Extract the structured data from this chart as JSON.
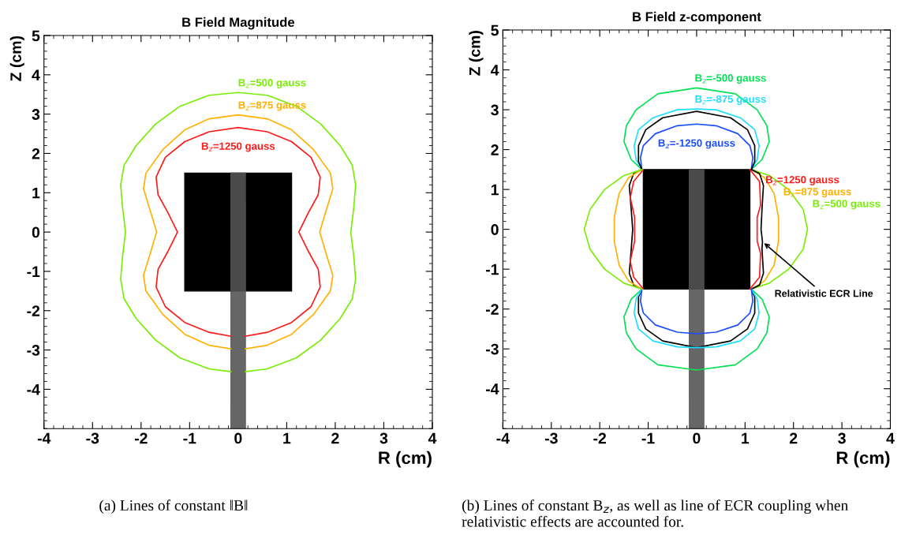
{
  "chart_data": [
    {
      "type": "line",
      "title": "B Field Magnitude",
      "xlabel": "R (cm)",
      "ylabel": "Z (cm)",
      "xlim": [
        -4,
        4
      ],
      "ylim": [
        -5,
        5
      ],
      "xticks": [
        -4,
        -3,
        -2,
        -1,
        0,
        1,
        2,
        3,
        4
      ],
      "yticks": [
        -4,
        -3,
        -2,
        -1,
        0,
        1,
        2,
        3,
        4,
        5
      ],
      "series": [
        {
          "name": "B$_{z}$=500 gauss",
          "color": "#77ee00",
          "x": [
            0.15,
            0.6,
            1.2,
            1.7,
            2.1,
            2.35,
            2.42,
            2.38,
            2.32,
            2.38,
            2.42,
            2.35,
            2.1,
            1.7,
            1.2,
            0.6,
            0,
            -0.6,
            -1.2,
            -1.7,
            -2.1,
            -2.35,
            -2.42,
            -2.38,
            -2.32,
            -2.38,
            -2.42,
            -2.35,
            -2.1,
            -1.7,
            -1.2,
            -0.6,
            -0.15
          ],
          "values": [
            -3.55,
            -3.48,
            -3.2,
            -2.75,
            -2.2,
            -1.7,
            -1.2,
            -0.6,
            0,
            0.6,
            1.2,
            1.7,
            2.2,
            2.75,
            3.2,
            3.48,
            3.55,
            3.48,
            3.2,
            2.75,
            2.2,
            1.7,
            1.2,
            0.6,
            0,
            -0.6,
            -1.2,
            -1.7,
            -2.2,
            -2.75,
            -3.2,
            -3.48,
            -3.55
          ]
        },
        {
          "name": "B$_{z}$=875 gauss",
          "color": "#ffb000",
          "x": [
            0.15,
            0.6,
            1.1,
            1.55,
            1.9,
            1.95,
            1.8,
            1.68,
            1.8,
            1.95,
            1.9,
            1.55,
            1.1,
            0.6,
            0,
            -0.6,
            -1.1,
            -1.55,
            -1.9,
            -1.95,
            -1.8,
            -1.68,
            -1.8,
            -1.95,
            -1.9,
            -1.55,
            -1.1,
            -0.6,
            -0.15
          ],
          "values": [
            -2.97,
            -2.88,
            -2.6,
            -2.1,
            -1.5,
            -1.1,
            -0.5,
            0,
            0.5,
            1.1,
            1.5,
            2.1,
            2.6,
            2.88,
            2.98,
            2.88,
            2.6,
            2.1,
            1.5,
            1.1,
            0.5,
            0,
            -0.5,
            -1.1,
            -1.5,
            -2.1,
            -2.6,
            -2.88,
            -2.97
          ]
        },
        {
          "name": "B$_{z}$=1250 gauss",
          "color": "#ff1a1a",
          "x": [
            0.15,
            0.6,
            1.1,
            1.5,
            1.69,
            1.65,
            1.45,
            1.25,
            1.45,
            1.65,
            1.69,
            1.5,
            1.1,
            0.6,
            0,
            -0.6,
            -1.1,
            -1.5,
            -1.69,
            -1.65,
            -1.45,
            -1.25,
            -1.45,
            -1.65,
            -1.69,
            -1.5,
            -1.1,
            -0.6,
            -0.15
          ],
          "values": [
            -2.65,
            -2.55,
            -2.3,
            -1.9,
            -1.4,
            -0.95,
            -0.5,
            0,
            0.5,
            0.95,
            1.4,
            1.9,
            2.3,
            2.55,
            2.66,
            2.55,
            2.3,
            1.9,
            1.4,
            0.95,
            0.5,
            0,
            -0.5,
            -0.95,
            -1.4,
            -1.9,
            -2.3,
            -2.55,
            -2.65
          ]
        }
      ],
      "annotations": [
        "(a) Lines of constant ‖B‖"
      ]
    },
    {
      "type": "line",
      "title": "B Field z-component",
      "xlabel": "R (cm)",
      "ylabel": "Z (cm)",
      "xlim": [
        -4,
        4
      ],
      "ylim": [
        -5,
        5
      ],
      "xticks": [
        -4,
        -3,
        -2,
        -1,
        0,
        1,
        2,
        3,
        4
      ],
      "yticks": [
        -4,
        -3,
        -2,
        -1,
        0,
        1,
        2,
        3,
        4,
        5
      ],
      "series": [
        {
          "name": "B$_{z}$=-500 gauss",
          "color": "#00e055",
          "x": [
            -1.13,
            -1.35,
            -1.5,
            -1.45,
            -1.25,
            -0.8,
            0,
            0.8,
            1.25,
            1.45,
            1.5,
            1.35,
            1.13
          ],
          "values": [
            1.5,
            1.75,
            2.2,
            2.6,
            3.0,
            3.4,
            3.55,
            3.4,
            3.0,
            2.6,
            2.2,
            1.75,
            1.5
          ]
        },
        {
          "name": "B$_{z}$=-875 gauss",
          "color": "#22ddff",
          "x": [
            -1.13,
            -1.25,
            -1.29,
            -1.2,
            -0.9,
            -0.4,
            0,
            0.4,
            0.9,
            1.2,
            1.29,
            1.25,
            1.13
          ],
          "values": [
            1.5,
            1.75,
            2.1,
            2.5,
            2.8,
            3.0,
            3.02,
            3.0,
            2.8,
            2.5,
            2.1,
            1.75,
            1.5
          ]
        },
        {
          "name": "B$_{z}$=-1250 gauss",
          "color": "#1a4dff",
          "x": [
            -1.13,
            -1.16,
            -1.1,
            -0.85,
            -0.4,
            0,
            0.4,
            0.85,
            1.1,
            1.16,
            1.13
          ],
          "values": [
            1.5,
            1.8,
            2.1,
            2.4,
            2.6,
            2.64,
            2.6,
            2.4,
            2.1,
            1.8,
            1.5
          ]
        },
        {
          "name": "B$_{z}$=1250 gauss",
          "color": "#ff1a1a",
          "x": [
            1.1,
            1.3,
            1.32,
            1.25,
            1.25,
            1.32,
            1.3,
            1.1
          ],
          "values": [
            1.5,
            1.2,
            0.6,
            0.3,
            -0.3,
            -0.6,
            -1.2,
            -1.5
          ]
        },
        {
          "name": "B$_{z}$=875 gauss",
          "color": "#ffb000",
          "x": [
            1.13,
            1.4,
            1.6,
            1.69,
            1.69,
            1.6,
            1.4,
            1.13
          ],
          "values": [
            1.5,
            1.3,
            0.9,
            0.3,
            -0.3,
            -0.9,
            -1.3,
            -1.5
          ]
        },
        {
          "name": "B$_{z}$=500 gauss",
          "color": "#77ee00",
          "x": [
            1.13,
            1.5,
            1.9,
            2.2,
            2.29,
            2.2,
            1.9,
            1.5,
            1.13
          ],
          "values": [
            1.5,
            1.35,
            1.0,
            0.5,
            0,
            -0.5,
            -1.0,
            -1.35,
            -1.5
          ]
        },
        {
          "color": "#000000",
          "x": [
            -1.13,
            -1.2,
            -1.2,
            -1.05,
            -0.7,
            0,
            0.7,
            1.05,
            1.2,
            1.2,
            1.13
          ],
          "values": [
            1.5,
            1.7,
            2.1,
            2.5,
            2.8,
            2.96,
            2.8,
            2.5,
            2.1,
            1.7,
            1.5
          ]
        },
        {
          "color": "#000000",
          "x": [
            1.13,
            1.3,
            1.38,
            1.35,
            1.33,
            1.36,
            1.35,
            1.38,
            1.3,
            1.13
          ],
          "values": [
            1.5,
            1.4,
            1.1,
            0.5,
            0,
            -0.31,
            -0.5,
            -1.1,
            -1.4,
            -1.5
          ]
        },
        {
          "color": "#000000",
          "x": [
            -1.13,
            -1.3,
            -1.39,
            -1.35,
            -1.32,
            -1.35,
            -1.39,
            -1.3,
            -1.13
          ],
          "values": [
            1.5,
            1.4,
            1.1,
            0.5,
            0,
            -0.5,
            -1.1,
            -1.4,
            -1.5
          ]
        },
        {
          "color": "#000000",
          "x": [
            -1.13,
            -1.2,
            -1.2,
            -1.05,
            -0.7,
            0,
            0.7,
            1.05,
            1.2,
            1.2,
            1.13
          ],
          "values": [
            -1.5,
            -1.7,
            -2.1,
            -2.5,
            -2.8,
            -2.97,
            -2.8,
            -2.5,
            -2.1,
            -1.7,
            -1.5
          ]
        },
        {
          "color": "#00e055",
          "x": [
            -1.13,
            -1.35,
            -1.5,
            -1.45,
            -1.25,
            -0.8,
            0,
            0.8,
            1.25,
            1.45,
            1.5,
            1.35,
            1.13
          ],
          "values": [
            -1.5,
            -1.75,
            -2.2,
            -2.6,
            -3.0,
            -3.4,
            -3.53,
            -3.4,
            -3.0,
            -2.6,
            -2.2,
            -1.75,
            -1.5
          ]
        },
        {
          "color": "#22ddff",
          "x": [
            -1.13,
            -1.25,
            -1.29,
            -1.2,
            -0.9,
            -0.4,
            0,
            0.4,
            0.9,
            1.2,
            1.29,
            1.25,
            1.13
          ],
          "values": [
            -1.5,
            -1.75,
            -2.1,
            -2.5,
            -2.8,
            -2.95,
            -2.97,
            -2.95,
            -2.8,
            -2.5,
            -2.1,
            -1.75,
            -1.5
          ]
        },
        {
          "color": "#1a4dff",
          "x": [
            -1.13,
            -1.16,
            -1.1,
            -0.85,
            -0.4,
            0,
            0.4,
            0.85,
            1.1,
            1.16,
            1.13
          ],
          "values": [
            -1.5,
            -1.8,
            -2.1,
            -2.4,
            -2.58,
            -2.62,
            -2.58,
            -2.4,
            -2.1,
            -1.8,
            -1.5
          ]
        },
        {
          "color": "#ff1a1a",
          "x": [
            -1.1,
            -1.3,
            -1.37,
            -1.28,
            -1.28,
            -1.37,
            -1.3,
            -1.1
          ],
          "values": [
            1.5,
            1.2,
            0.8,
            0.3,
            -0.3,
            -0.8,
            -1.2,
            -1.5
          ]
        },
        {
          "color": "#ffb000",
          "x": [
            -1.13,
            -1.4,
            -1.6,
            -1.7,
            -1.7,
            -1.6,
            -1.4,
            -1.13
          ],
          "values": [
            1.5,
            1.3,
            0.9,
            0.3,
            -0.3,
            -0.9,
            -1.3,
            -1.5
          ]
        },
        {
          "color": "#77ee00",
          "x": [
            -1.13,
            -1.5,
            -1.9,
            -2.2,
            -2.32,
            -2.2,
            -1.9,
            -1.5,
            -1.13
          ],
          "values": [
            1.5,
            1.35,
            1.0,
            0.5,
            0,
            -0.5,
            -1.0,
            -1.35,
            -1.5
          ]
        }
      ],
      "annotations": [
        {
          "text": "Relativistic ECR Line",
          "x": 1.36,
          "y": -0.31
        },
        "(b) Lines of constant B$_{z}$, as well as line of ECR coupling when relativistic effects are accounted for."
      ]
    }
  ]
}
